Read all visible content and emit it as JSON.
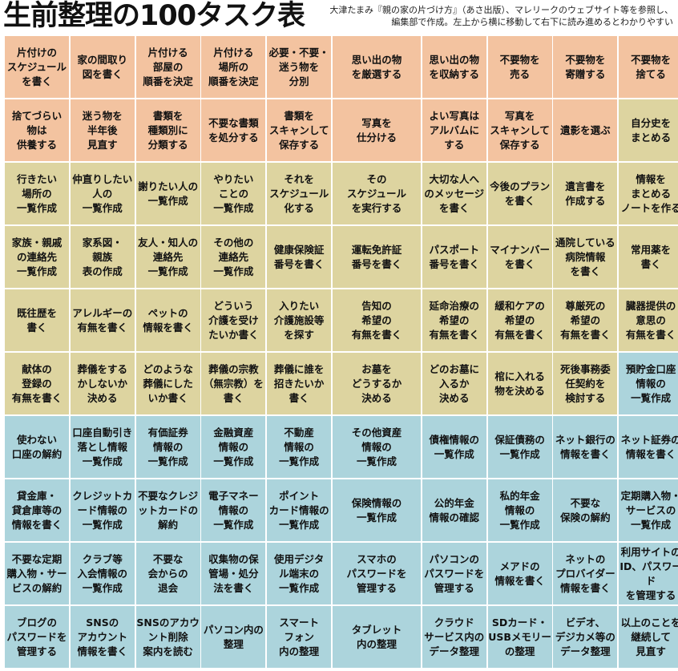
{
  "header": {
    "title": "生前整理の100タスク表",
    "note_line1": "大津たまみ『親の家の片づけ方』（あさ出版）、マレリークのウェブサイト等を参照し、",
    "note_line2": "編集部で作成。左上から横に移動して右下に読み進めるとわかりやすい"
  },
  "colors": {
    "orange": "#f3c3a0",
    "khaki": "#ddd4a0",
    "blue": "#acd4dc"
  },
  "tasks": [
    {
      "text": "片付けの\nスケジュール\nを書く",
      "color": "orange"
    },
    {
      "text": "家の間取り\n図を書く",
      "color": "orange"
    },
    {
      "text": "片付ける\n部屋の\n順番を決定",
      "color": "orange"
    },
    {
      "text": "片付ける\n場所の\n順番を決定",
      "color": "orange"
    },
    {
      "text": "必要・不要・\n迷う物を\n分別",
      "color": "orange"
    },
    {
      "text": "思い出の物\nを厳選する",
      "color": "orange"
    },
    {
      "text": "思い出の物\nを収納する",
      "color": "orange"
    },
    {
      "text": "不要物を\n売る",
      "color": "orange"
    },
    {
      "text": "不要物を\n寄贈する",
      "color": "orange"
    },
    {
      "text": "不要物を\n捨てる",
      "color": "orange"
    },
    {
      "text": "捨てづらい\n物は\n供養する",
      "color": "orange"
    },
    {
      "text": "迷う物を\n半年後\n見直す",
      "color": "orange"
    },
    {
      "text": "書類を\n種類別に\n分類する",
      "color": "orange"
    },
    {
      "text": "不要な書類\nを処分する",
      "color": "orange"
    },
    {
      "text": "書類を\nスキャンして\n保存する",
      "color": "orange"
    },
    {
      "text": "写真を\n仕分ける",
      "color": "orange"
    },
    {
      "text": "よい写真は\nアルバムに\nする",
      "color": "orange"
    },
    {
      "text": "写真を\nスキャンして\n保存する",
      "color": "orange"
    },
    {
      "text": "遺影を選ぶ",
      "color": "orange"
    },
    {
      "text": "自分史を\nまとめる",
      "color": "khaki"
    },
    {
      "text": "行きたい\n場所の\n一覧作成",
      "color": "khaki"
    },
    {
      "text": "仲直りしたい\n人の\n一覧作成",
      "color": "khaki"
    },
    {
      "text": "謝りたい人の\n一覧作成",
      "color": "khaki"
    },
    {
      "text": "やりたい\nことの\n一覧作成",
      "color": "khaki"
    },
    {
      "text": "それを\nスケジュール\n化する",
      "color": "khaki"
    },
    {
      "text": "その\nスケジュール\nを実行する",
      "color": "khaki"
    },
    {
      "text": "大切な人へ\nのメッセージ\nを書く",
      "color": "khaki"
    },
    {
      "text": "今後のプラン\nを書く",
      "color": "khaki"
    },
    {
      "text": "遺言書を\n作成する",
      "color": "khaki"
    },
    {
      "text": "情報を\nまとめる\nノートを作る",
      "color": "khaki"
    },
    {
      "text": "家族・親戚\nの連絡先\n一覧作成",
      "color": "khaki"
    },
    {
      "text": "家系図・\n親族\n表の作成",
      "color": "khaki"
    },
    {
      "text": "友人・知人の\n連絡先\n一覧作成",
      "color": "khaki"
    },
    {
      "text": "その他の\n連絡先\n一覧作成",
      "color": "khaki"
    },
    {
      "text": "健康保険証\n番号を書く",
      "color": "khaki"
    },
    {
      "text": "運転免許証\n番号を書く",
      "color": "khaki"
    },
    {
      "text": "パスポート\n番号を書く",
      "color": "khaki"
    },
    {
      "text": "マイナンバー\nを書く",
      "color": "khaki"
    },
    {
      "text": "通院している\n病院情報\nを書く",
      "color": "khaki"
    },
    {
      "text": "常用薬を\n書く",
      "color": "khaki"
    },
    {
      "text": "既往歴を\n書く",
      "color": "khaki"
    },
    {
      "text": "アレルギーの\n有無を書く",
      "color": "khaki"
    },
    {
      "text": "ペットの\n情報を書く",
      "color": "khaki"
    },
    {
      "text": "どういう\n介護を受け\nたいか書く",
      "color": "khaki"
    },
    {
      "text": "入りたい\n介護施設等\nを探す",
      "color": "khaki"
    },
    {
      "text": "告知の\n希望の\n有無を書く",
      "color": "khaki"
    },
    {
      "text": "延命治療の\n希望の\n有無を書く",
      "color": "khaki"
    },
    {
      "text": "緩和ケアの\n希望の\n有無を書く",
      "color": "khaki"
    },
    {
      "text": "尊厳死の\n希望の\n有無を書く",
      "color": "khaki"
    },
    {
      "text": "臓器提供の\n意思の\n有無を書く",
      "color": "khaki"
    },
    {
      "text": "献体の\n登録の\n有無を書く",
      "color": "khaki"
    },
    {
      "text": "葬儀をする\nかしないか\n決める",
      "color": "khaki"
    },
    {
      "text": "どのような\n葬儀にした\nいか書く",
      "color": "khaki"
    },
    {
      "text": "葬儀の宗教\n（無宗教）を\n書く",
      "color": "khaki"
    },
    {
      "text": "葬儀に誰を\n招きたいか\n書く",
      "color": "khaki"
    },
    {
      "text": "お墓を\nどうするか\n決める",
      "color": "khaki"
    },
    {
      "text": "どのお墓に\n入るか\n決める",
      "color": "khaki"
    },
    {
      "text": "棺に入れる\n物を決める",
      "color": "khaki"
    },
    {
      "text": "死後事務委\n任契約を\n検討する",
      "color": "khaki"
    },
    {
      "text": "預貯金口座\n情報の\n一覧作成",
      "color": "blue"
    },
    {
      "text": "使わない\n口座の解約",
      "color": "blue"
    },
    {
      "text": "口座自動引き\n落とし情報\n一覧作成",
      "color": "blue"
    },
    {
      "text": "有価証券\n情報の\n一覧作成",
      "color": "blue"
    },
    {
      "text": "金融資産\n情報の\n一覧作成",
      "color": "blue"
    },
    {
      "text": "不動産\n情報の\n一覧作成",
      "color": "blue"
    },
    {
      "text": "その他資産\n情報の\n一覧作成",
      "color": "blue"
    },
    {
      "text": "債権情報の\n一覧作成",
      "color": "blue"
    },
    {
      "text": "保証債務の\n一覧作成",
      "color": "blue"
    },
    {
      "text": "ネット銀行の\n情報を書く",
      "color": "blue"
    },
    {
      "text": "ネット証券の\n情報を書く",
      "color": "blue"
    },
    {
      "text": "貸金庫・\n貸倉庫等の\n情報を書く",
      "color": "blue"
    },
    {
      "text": "クレジットカ\nード情報の\n一覧作成",
      "color": "blue"
    },
    {
      "text": "不要なクレジ\nットカードの\n解約",
      "color": "blue"
    },
    {
      "text": "電子マネー\n情報の\n一覧作成",
      "color": "blue"
    },
    {
      "text": "ポイント\nカード情報の\n一覧作成",
      "color": "blue"
    },
    {
      "text": "保険情報の\n一覧作成",
      "color": "blue"
    },
    {
      "text": "公的年金\n情報の確認",
      "color": "blue"
    },
    {
      "text": "私的年金\n情報の\n一覧作成",
      "color": "blue"
    },
    {
      "text": "不要な\n保険の解約",
      "color": "blue"
    },
    {
      "text": "定期購入物・\nサービスの\n一覧作成",
      "color": "blue"
    },
    {
      "text": "不要な定期\n購入物・サー\nビスの解約",
      "color": "blue"
    },
    {
      "text": "クラブ等\n入会情報の\n一覧作成",
      "color": "blue"
    },
    {
      "text": "不要な\n会からの\n退会",
      "color": "blue"
    },
    {
      "text": "収集物の保\n管場・処分\n法を書く",
      "color": "blue"
    },
    {
      "text": "使用デジタ\nル端末の\n一覧作成",
      "color": "blue"
    },
    {
      "text": "スマホの\nパスワードを\n管理する",
      "color": "blue"
    },
    {
      "text": "パソコンの\nパスワードを\n管理する",
      "color": "blue"
    },
    {
      "text": "メアドの\n情報を書く",
      "color": "blue"
    },
    {
      "text": "ネットの\nプロバイダー\n情報を書く",
      "color": "blue"
    },
    {
      "text": "利用サイトの\nID、パスワード\nを管理する",
      "color": "blue"
    },
    {
      "text": "ブログの\nパスワードを\n管理する",
      "color": "blue"
    },
    {
      "text": "SNSの\nアカウント\n情報を書く",
      "color": "blue"
    },
    {
      "text": "SNSのアカウ\nント削除\n案内を読む",
      "color": "blue"
    },
    {
      "text": "パソコン内の\n整理",
      "color": "blue"
    },
    {
      "text": "スマート\nフォン\n内の整理",
      "color": "blue"
    },
    {
      "text": "タブレット\n内の整理",
      "color": "blue"
    },
    {
      "text": "クラウド\nサービス内の\nデータ整理",
      "color": "blue"
    },
    {
      "text": "SDカード・\nUSBメモリー\nの整理",
      "color": "blue"
    },
    {
      "text": "ビデオ、\nデジカメ等の\nデータ整理",
      "color": "blue"
    },
    {
      "text": "以上のことを\n継続して\n見直す",
      "color": "blue"
    }
  ]
}
